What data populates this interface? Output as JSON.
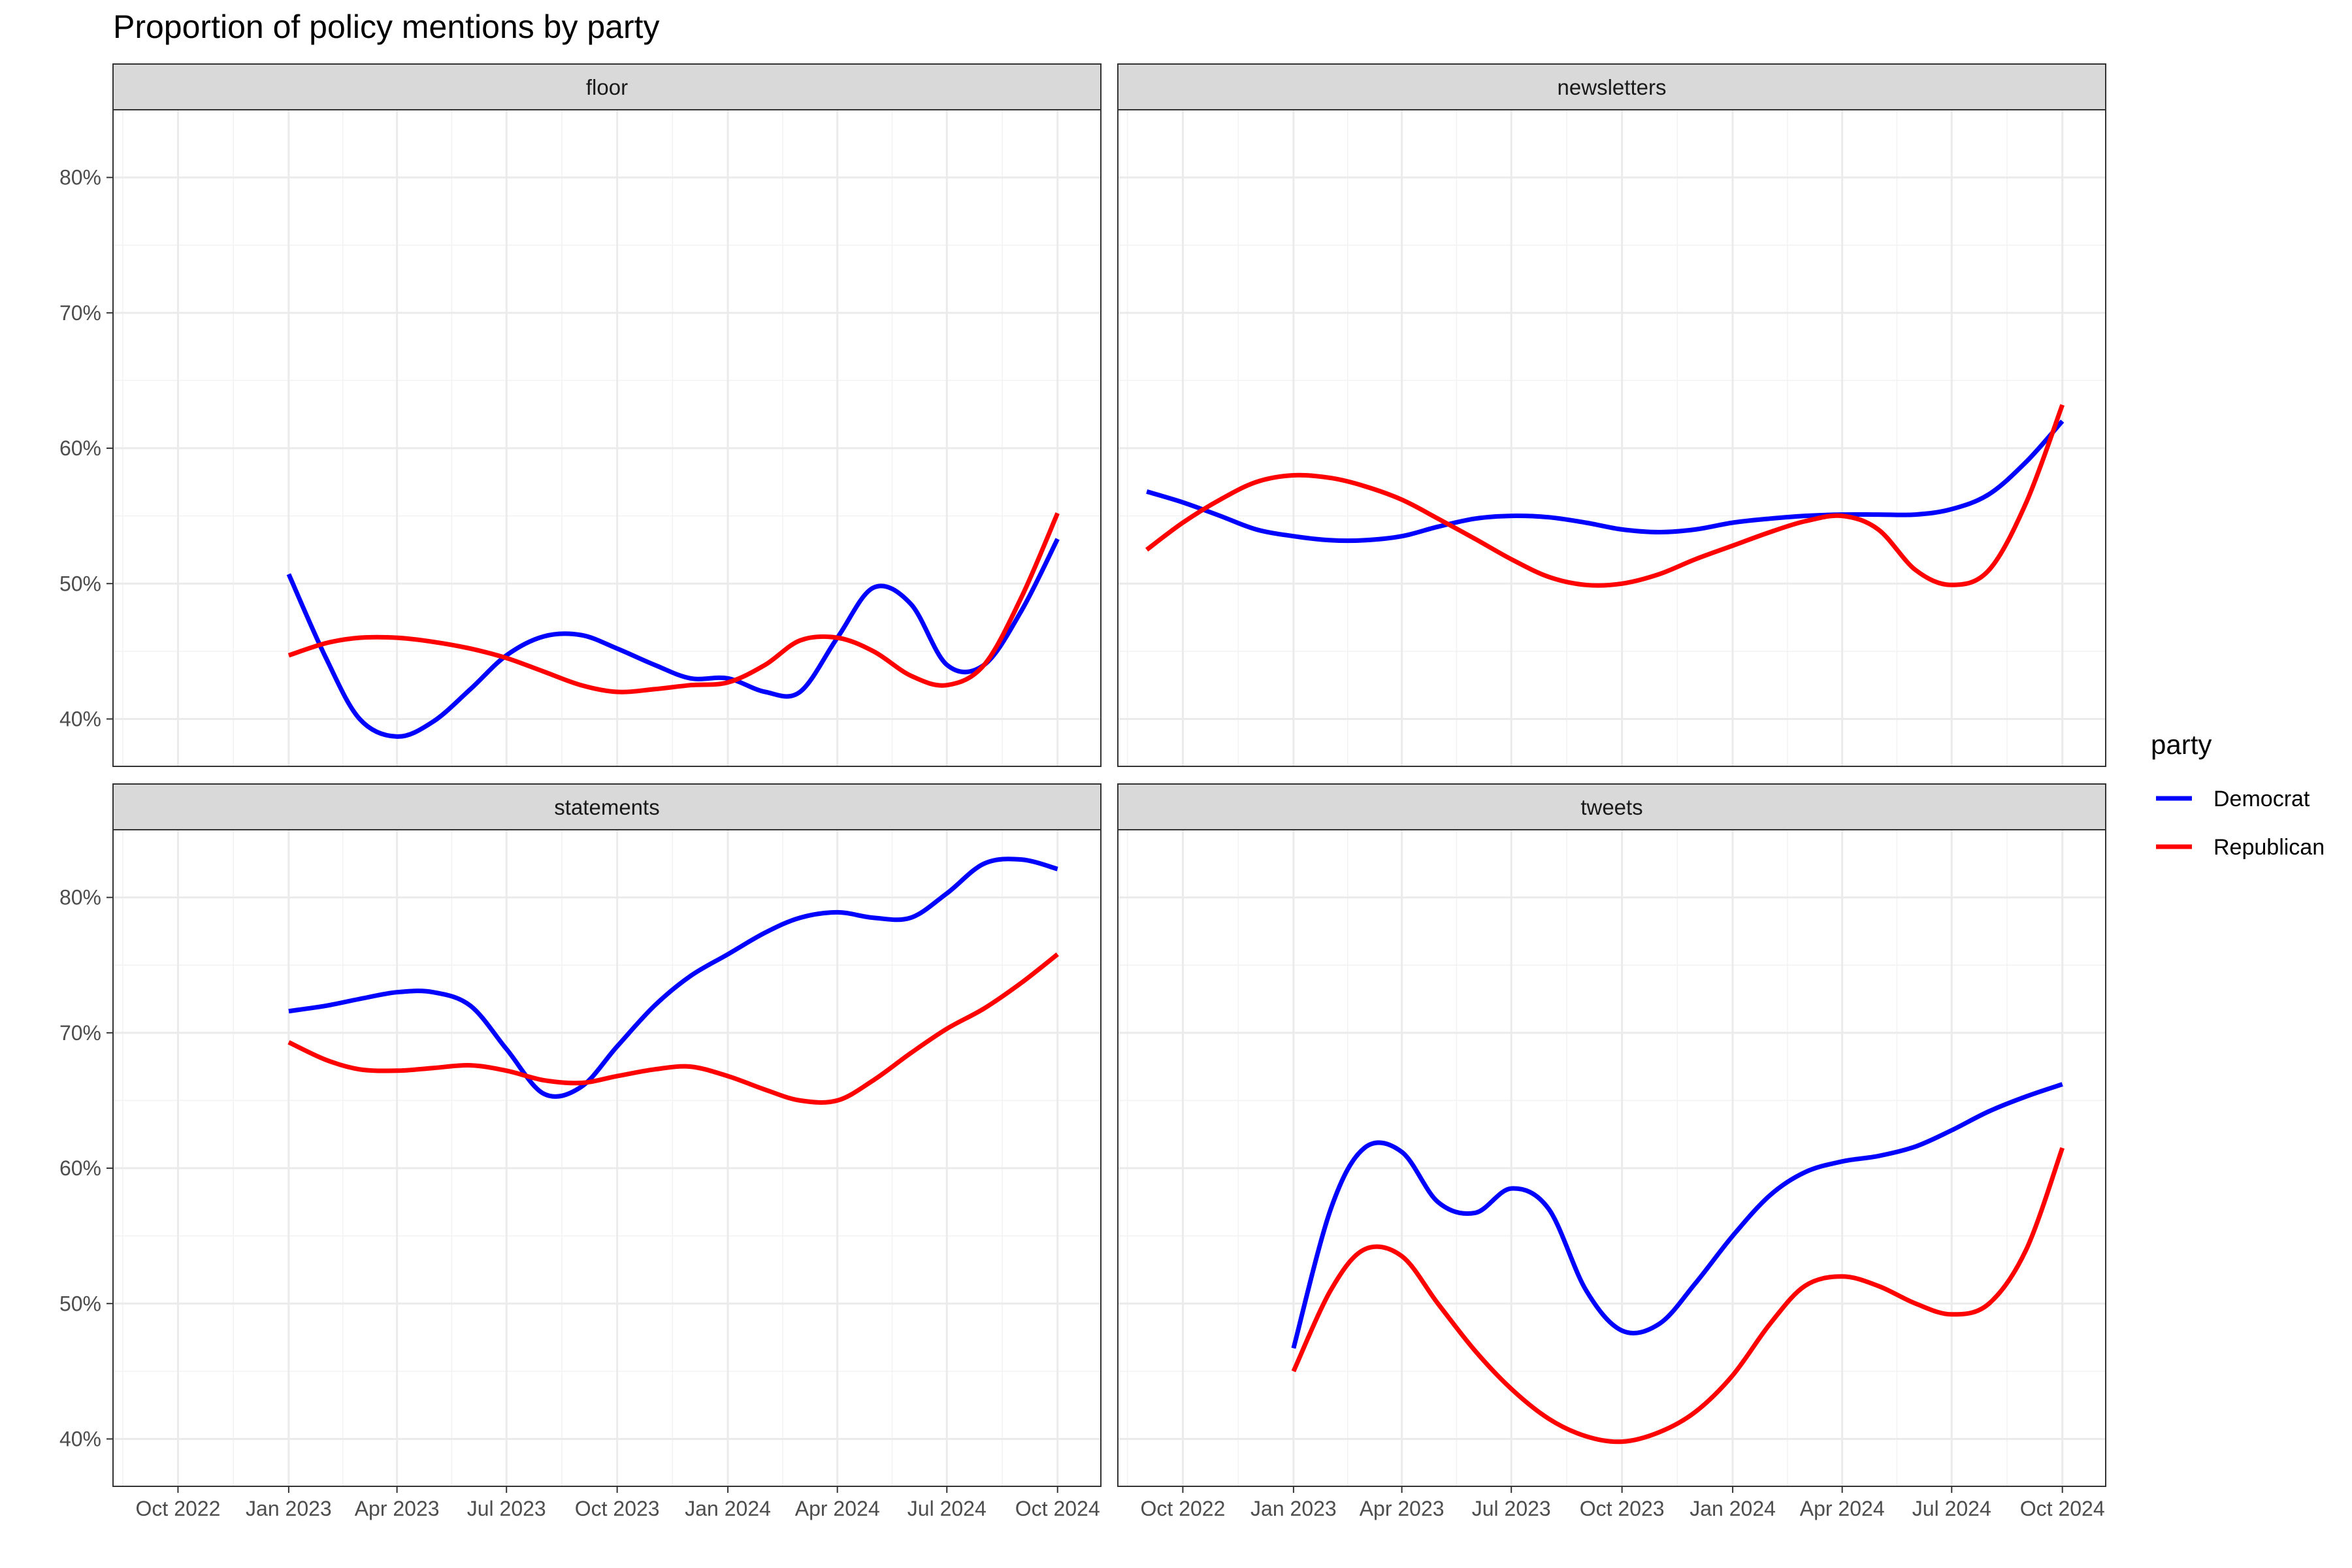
{
  "chart_data": {
    "type": "line",
    "title": "Proportion of policy mentions by party",
    "legend": {
      "title": "party",
      "position": "right"
    },
    "y_axis": {
      "ticks": [
        0.4,
        0.5,
        0.6,
        0.7,
        0.8
      ],
      "tick_labels": [
        "40%",
        "50%",
        "60%",
        "70%",
        "80%"
      ],
      "ylim": [
        0.365,
        0.85
      ]
    },
    "x_axis": {
      "ticks": [
        "2022-10-01",
        "2023-01-01",
        "2023-04-01",
        "2023-07-01",
        "2023-10-01",
        "2024-01-01",
        "2024-04-01",
        "2024-07-01",
        "2024-10-01"
      ],
      "tick_labels": [
        "Oct 2022",
        "Jan 2023",
        "Apr 2023",
        "Jul 2023",
        "Oct 2023",
        "Jan 2024",
        "Apr 2024",
        "Jul 2024",
        "Oct 2024"
      ],
      "xlim": [
        "2022-08-08",
        "2024-11-06"
      ]
    },
    "grid": true,
    "series_colors": {
      "Democrat": "#0000ff",
      "Republican": "#ff0000"
    },
    "panels": [
      {
        "name": "floor",
        "series": [
          {
            "name": "Democrat",
            "x": [
              "2023-01-01",
              "2023-02-01",
              "2023-03-01",
              "2023-04-01",
              "2023-05-01",
              "2023-06-01",
              "2023-07-01",
              "2023-08-01",
              "2023-09-01",
              "2023-10-01",
              "2023-11-01",
              "2023-12-01",
              "2024-01-01",
              "2024-02-01",
              "2024-03-01",
              "2024-04-01",
              "2024-05-01",
              "2024-06-01",
              "2024-07-01",
              "2024-08-01",
              "2024-09-01",
              "2024-10-01"
            ],
            "values": [
              0.507,
              0.445,
              0.4,
              0.387,
              0.398,
              0.422,
              0.447,
              0.461,
              0.462,
              0.452,
              0.44,
              0.43,
              0.43,
              0.42,
              0.42,
              0.46,
              0.497,
              0.485,
              0.44,
              0.44,
              0.48,
              0.533
            ]
          },
          {
            "name": "Republican",
            "x": [
              "2023-01-01",
              "2023-02-01",
              "2023-03-01",
              "2023-04-01",
              "2023-05-01",
              "2023-06-01",
              "2023-07-01",
              "2023-08-01",
              "2023-09-01",
              "2023-10-01",
              "2023-11-01",
              "2023-12-01",
              "2024-01-01",
              "2024-02-01",
              "2024-03-01",
              "2024-04-01",
              "2024-05-01",
              "2024-06-01",
              "2024-07-01",
              "2024-08-01",
              "2024-09-01",
              "2024-10-01"
            ],
            "values": [
              0.447,
              0.456,
              0.46,
              0.46,
              0.457,
              0.452,
              0.445,
              0.435,
              0.425,
              0.42,
              0.422,
              0.425,
              0.427,
              0.44,
              0.458,
              0.46,
              0.45,
              0.432,
              0.425,
              0.44,
              0.49,
              0.552
            ]
          }
        ]
      },
      {
        "name": "newsletters",
        "series": [
          {
            "name": "Democrat",
            "x": [
              "2022-09-01",
              "2022-10-01",
              "2022-11-01",
              "2022-12-01",
              "2023-01-01",
              "2023-02-01",
              "2023-03-01",
              "2023-04-01",
              "2023-05-01",
              "2023-06-01",
              "2023-07-01",
              "2023-08-01",
              "2023-09-01",
              "2023-10-01",
              "2023-11-01",
              "2023-12-01",
              "2024-01-01",
              "2024-02-01",
              "2024-03-01",
              "2024-04-01",
              "2024-05-01",
              "2024-06-01",
              "2024-07-01",
              "2024-08-01",
              "2024-09-01",
              "2024-10-01"
            ],
            "values": [
              0.568,
              0.56,
              0.55,
              0.54,
              0.535,
              0.532,
              0.532,
              0.535,
              0.542,
              0.548,
              0.55,
              0.549,
              0.545,
              0.54,
              0.538,
              0.54,
              0.545,
              0.548,
              0.55,
              0.551,
              0.551,
              0.551,
              0.555,
              0.566,
              0.59,
              0.62
            ]
          },
          {
            "name": "Republican",
            "x": [
              "2022-09-01",
              "2022-10-01",
              "2022-11-01",
              "2022-12-01",
              "2023-01-01",
              "2023-02-01",
              "2023-03-01",
              "2023-04-01",
              "2023-05-01",
              "2023-06-01",
              "2023-07-01",
              "2023-08-01",
              "2023-09-01",
              "2023-10-01",
              "2023-11-01",
              "2023-12-01",
              "2024-01-01",
              "2024-02-01",
              "2024-03-01",
              "2024-04-01",
              "2024-05-01",
              "2024-06-01",
              "2024-07-01",
              "2024-08-01",
              "2024-09-01",
              "2024-10-01"
            ],
            "values": [
              0.525,
              0.545,
              0.562,
              0.575,
              0.58,
              0.578,
              0.572,
              0.562,
              0.548,
              0.533,
              0.518,
              0.505,
              0.499,
              0.5,
              0.507,
              0.518,
              0.528,
              0.538,
              0.546,
              0.55,
              0.54,
              0.51,
              0.499,
              0.51,
              0.56,
              0.632
            ]
          }
        ]
      },
      {
        "name": "statements",
        "series": [
          {
            "name": "Democrat",
            "x": [
              "2023-01-01",
              "2023-02-01",
              "2023-03-01",
              "2023-04-01",
              "2023-05-01",
              "2023-06-01",
              "2023-07-01",
              "2023-08-01",
              "2023-09-01",
              "2023-10-01",
              "2023-11-01",
              "2023-12-01",
              "2024-01-01",
              "2024-02-01",
              "2024-03-01",
              "2024-04-01",
              "2024-05-01",
              "2024-06-01",
              "2024-07-01",
              "2024-08-01",
              "2024-09-01",
              "2024-10-01"
            ],
            "values": [
              0.716,
              0.72,
              0.725,
              0.73,
              0.73,
              0.72,
              0.688,
              0.655,
              0.66,
              0.69,
              0.72,
              0.742,
              0.758,
              0.774,
              0.785,
              0.789,
              0.785,
              0.785,
              0.803,
              0.825,
              0.828,
              0.821
            ]
          },
          {
            "name": "Republican",
            "x": [
              "2023-01-01",
              "2023-02-01",
              "2023-03-01",
              "2023-04-01",
              "2023-05-01",
              "2023-06-01",
              "2023-07-01",
              "2023-08-01",
              "2023-09-01",
              "2023-10-01",
              "2023-11-01",
              "2023-12-01",
              "2024-01-01",
              "2024-02-01",
              "2024-03-01",
              "2024-04-01",
              "2024-05-01",
              "2024-06-01",
              "2024-07-01",
              "2024-08-01",
              "2024-09-01",
              "2024-10-01"
            ],
            "values": [
              0.693,
              0.68,
              0.673,
              0.672,
              0.674,
              0.676,
              0.672,
              0.665,
              0.663,
              0.668,
              0.673,
              0.675,
              0.668,
              0.658,
              0.65,
              0.65,
              0.665,
              0.685,
              0.703,
              0.718,
              0.737,
              0.758
            ]
          }
        ]
      },
      {
        "name": "tweets",
        "series": [
          {
            "name": "Democrat",
            "x": [
              "2023-01-01",
              "2023-02-01",
              "2023-03-01",
              "2023-04-01",
              "2023-05-01",
              "2023-06-01",
              "2023-07-01",
              "2023-08-01",
              "2023-09-01",
              "2023-10-01",
              "2023-11-01",
              "2023-12-01",
              "2024-01-01",
              "2024-02-01",
              "2024-03-01",
              "2024-04-01",
              "2024-05-01",
              "2024-06-01",
              "2024-07-01",
              "2024-08-01",
              "2024-09-01",
              "2024-10-01"
            ],
            "values": [
              0.467,
              0.57,
              0.615,
              0.612,
              0.575,
              0.567,
              0.585,
              0.57,
              0.51,
              0.48,
              0.485,
              0.515,
              0.55,
              0.58,
              0.597,
              0.605,
              0.609,
              0.616,
              0.628,
              0.642,
              0.653,
              0.662
            ]
          },
          {
            "name": "Republican",
            "x": [
              "2023-01-01",
              "2023-02-01",
              "2023-03-01",
              "2023-04-01",
              "2023-05-01",
              "2023-06-01",
              "2023-07-01",
              "2023-08-01",
              "2023-09-01",
              "2023-10-01",
              "2023-11-01",
              "2023-12-01",
              "2024-01-01",
              "2024-02-01",
              "2024-03-01",
              "2024-04-01",
              "2024-05-01",
              "2024-06-01",
              "2024-07-01",
              "2024-08-01",
              "2024-09-01",
              "2024-10-01"
            ],
            "values": [
              0.45,
              0.51,
              0.54,
              0.535,
              0.5,
              0.465,
              0.437,
              0.415,
              0.402,
              0.398,
              0.405,
              0.42,
              0.447,
              0.485,
              0.513,
              0.52,
              0.513,
              0.5,
              0.492,
              0.5,
              0.54,
              0.615
            ]
          }
        ]
      }
    ]
  }
}
